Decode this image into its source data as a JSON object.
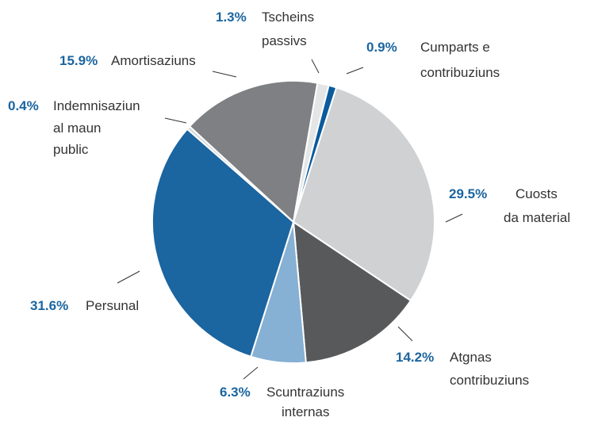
{
  "chart_data": {
    "type": "pie",
    "categories": [
      [
        "Cumparts e",
        "contribuziuns"
      ],
      [
        "Cuosts",
        "da material"
      ],
      [
        "Atgnas",
        "contribuziuns"
      ],
      [
        "Scuntraziuns",
        "internas"
      ],
      [
        "Persunal"
      ],
      [
        "Indemnisaziun",
        "al maun",
        "public"
      ],
      [
        "Amortisaziuns"
      ],
      [
        "Tscheins",
        "passivs"
      ]
    ],
    "values": [
      0.9,
      29.5,
      14.2,
      6.3,
      31.6,
      0.4,
      15.9,
      1.3
    ],
    "value_labels": [
      "0.9%",
      "29.5%",
      "14.2%",
      "6.3%",
      "31.6%",
      "0.4%",
      "15.9%",
      "1.3%"
    ],
    "colors": [
      "#0b5a9c",
      "#d0d1d3",
      "#58595b",
      "#86b0d4",
      "#1b65a0",
      "#d7d8da",
      "#7f8083",
      "#e4e5e6"
    ]
  }
}
